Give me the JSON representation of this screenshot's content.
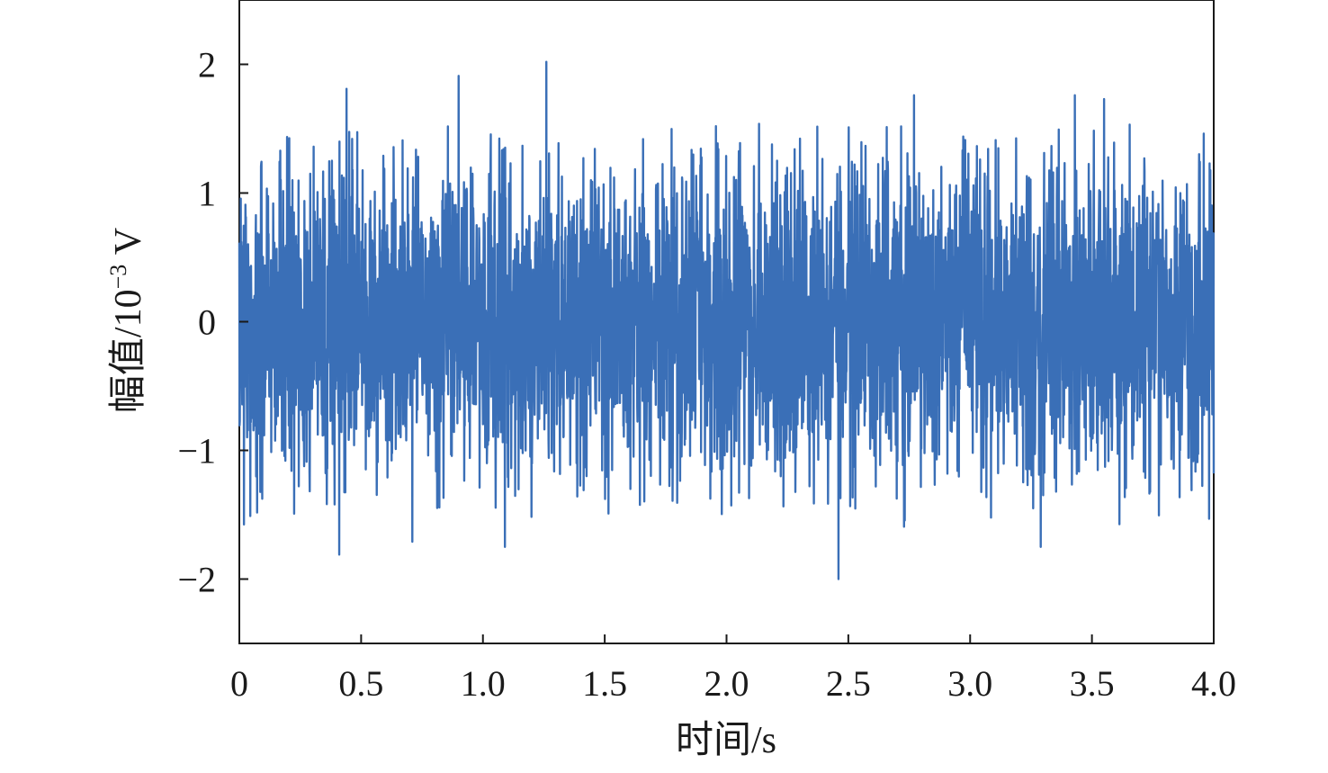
{
  "chart_data": {
    "type": "line",
    "title": "",
    "xlabel": "时间/s",
    "ylabel_main": "幅值/10",
    "ylabel_exp": "−3",
    "ylabel_unit": " V",
    "xlim": [
      0,
      4.0
    ],
    "ylim": [
      -2.5,
      2.5
    ],
    "x_ticks": [
      0,
      0.5,
      1.0,
      1.5,
      2.0,
      2.5,
      3.0,
      3.5,
      4.0
    ],
    "x_tick_labels": [
      "0",
      "0.5",
      "1.0",
      "1.5",
      "2.0",
      "2.5",
      "3.0",
      "3.5",
      "4.0"
    ],
    "y_ticks": [
      2,
      1,
      0,
      -1,
      -2
    ],
    "y_tick_labels": [
      "2",
      "1",
      "0",
      "−1",
      "−2"
    ],
    "grid": false,
    "legend": "none",
    "line_color": "#3a6fb7",
    "series": [
      {
        "notable_points": [
          {
            "x": 0.44,
            "y": 1.81
          },
          {
            "x": 0.9,
            "y": 1.91
          },
          {
            "x": 1.26,
            "y": 2.02
          },
          {
            "x": 0.41,
            "y": -1.81
          },
          {
            "x": 0.71,
            "y": -1.71
          },
          {
            "x": 1.09,
            "y": -1.75
          },
          {
            "x": 2.46,
            "y": -2.0
          },
          {
            "x": 3.29,
            "y": -1.75
          },
          {
            "x": 2.77,
            "y": 1.76
          },
          {
            "x": 3.55,
            "y": 1.73
          },
          {
            "x": 3.43,
            "y": 1.76
          }
        ],
        "noise_envelope": 1.2,
        "sample_count": 4000
      }
    ]
  }
}
